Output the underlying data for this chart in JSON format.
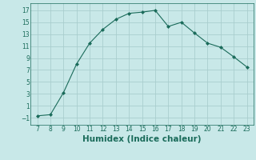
{
  "x": [
    7,
    8,
    9,
    10,
    11,
    12,
    13,
    14,
    15,
    16,
    17,
    18,
    19,
    20,
    21,
    22,
    23
  ],
  "y": [
    -0.7,
    -0.5,
    3.2,
    8.0,
    11.5,
    13.8,
    15.5,
    16.5,
    16.7,
    17.0,
    14.3,
    15.0,
    13.2,
    11.5,
    10.8,
    9.2,
    7.5
  ],
  "line_color": "#1a6b5a",
  "marker": "D",
  "marker_size": 2.0,
  "bg_color": "#c8e8e8",
  "grid_color": "#aacece",
  "xlabel": "Humidex (Indice chaleur)",
  "xlim": [
    6.5,
    23.5
  ],
  "ylim": [
    -2.2,
    18.2
  ],
  "xticks": [
    7,
    8,
    9,
    10,
    11,
    12,
    13,
    14,
    15,
    16,
    17,
    18,
    19,
    20,
    21,
    22,
    23
  ],
  "yticks": [
    -1,
    1,
    3,
    5,
    7,
    9,
    11,
    13,
    15,
    17
  ],
  "tick_fontsize": 5.5,
  "xlabel_fontsize": 7.5,
  "tick_color": "#1a6b5a",
  "spine_color": "#1a6b5a",
  "linewidth": 0.8
}
